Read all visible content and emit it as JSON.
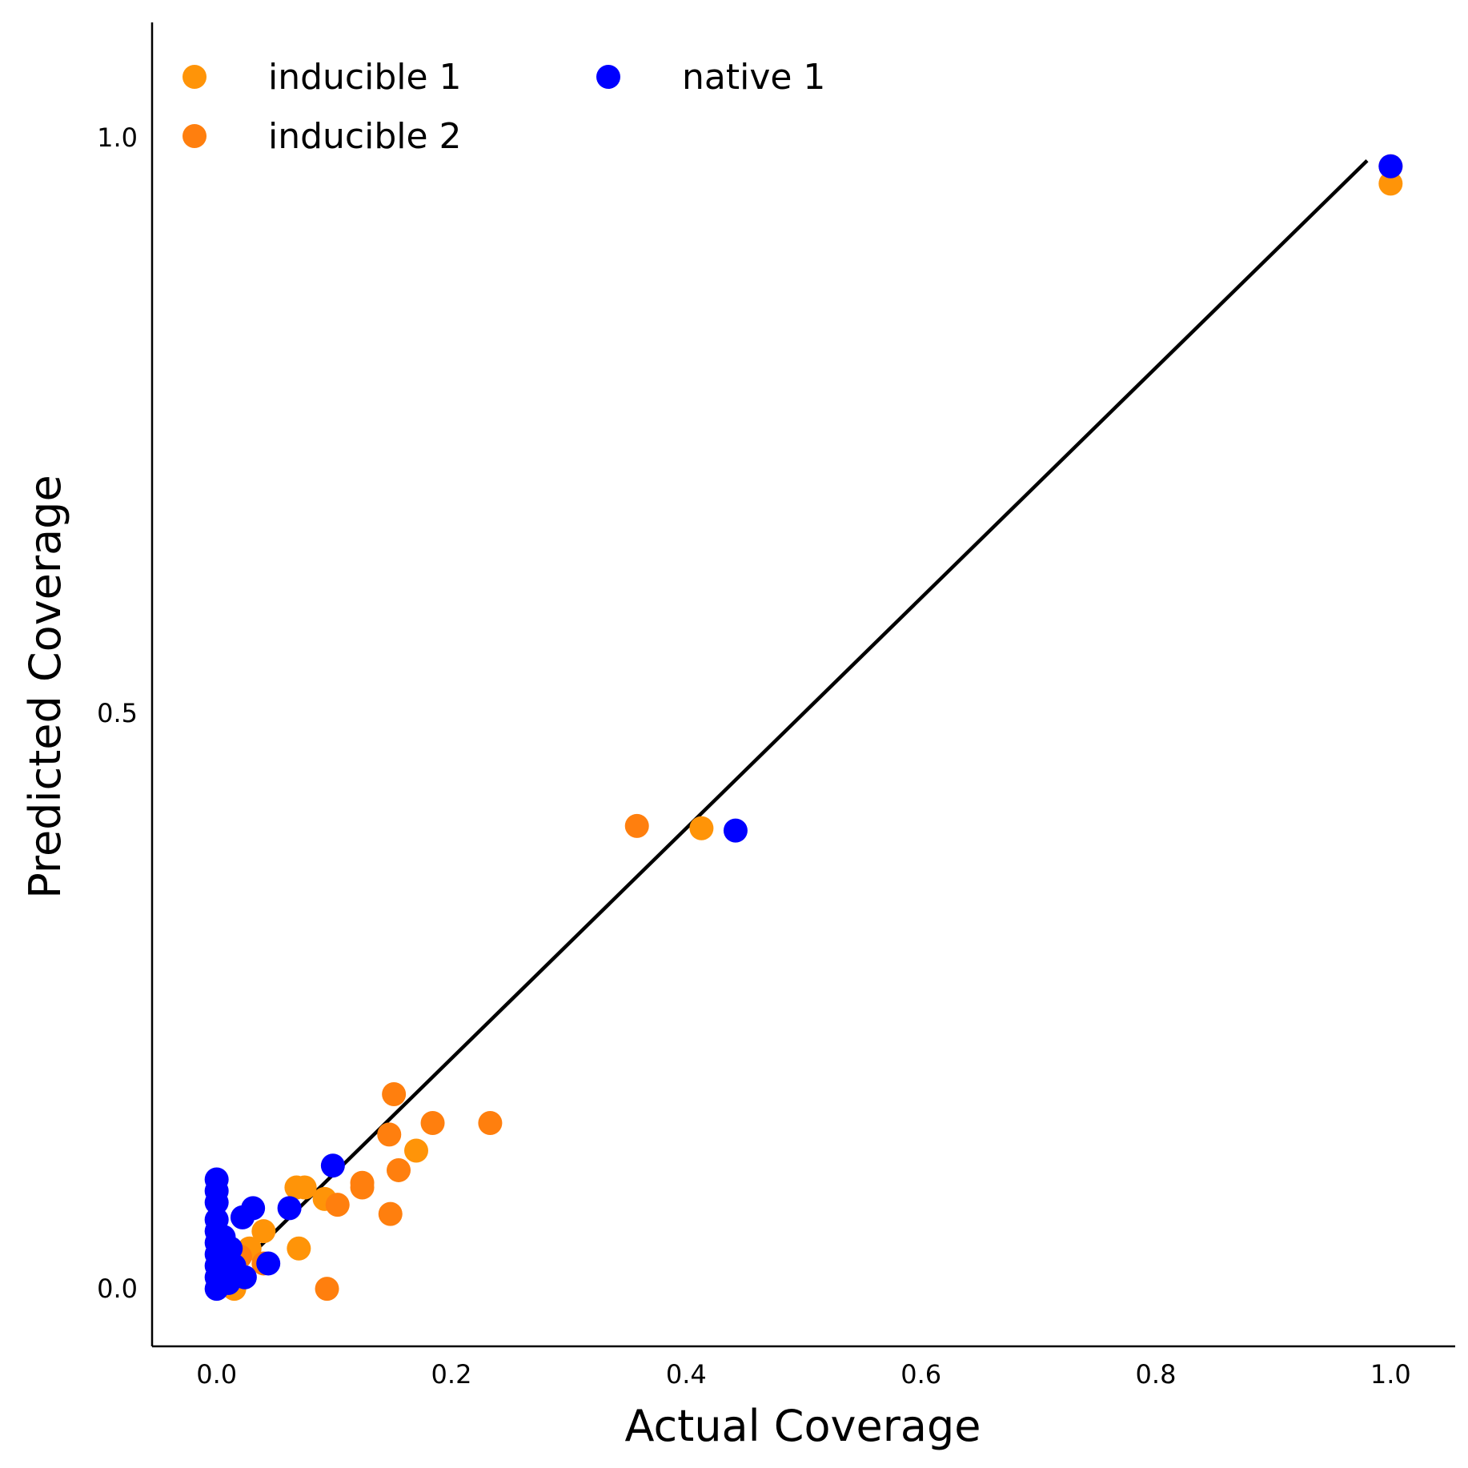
{
  "chart_data": {
    "type": "scatter",
    "title": "",
    "xlabel": "Actual Coverage",
    "ylabel": "Predicted Coverage",
    "xlim": [
      -0.055,
      1.055
    ],
    "ylim": [
      -0.05,
      1.1
    ],
    "xticks": [
      0.0,
      0.2,
      0.4,
      0.6,
      0.8,
      1.0
    ],
    "xtick_labels": [
      "0.0",
      "0.2",
      "0.4",
      "0.6",
      "0.8",
      "1.0"
    ],
    "yticks": [
      0.0,
      0.5,
      1.0
    ],
    "ytick_labels": [
      "0.0",
      "0.5",
      "1.0"
    ],
    "grid": false,
    "legend": {
      "placement": "top-left",
      "columns": 2
    },
    "fit_line": {
      "x": [
        0.02,
        0.98
      ],
      "y": [
        0.02,
        0.98
      ],
      "color": "#000000"
    },
    "series": [
      {
        "name": "inducible 1",
        "color": "#ff9408",
        "points": [
          [
            1.0,
            0.96
          ],
          [
            0.413,
            0.4
          ],
          [
            0.17,
            0.12
          ],
          [
            0.075,
            0.088
          ],
          [
            0.068,
            0.088
          ],
          [
            0.092,
            0.078
          ],
          [
            0.04,
            0.05
          ],
          [
            0.07,
            0.035
          ],
          [
            0.018,
            0.03
          ],
          [
            0.028,
            0.035
          ],
          [
            0.015,
            0.0
          ]
        ]
      },
      {
        "name": "inducible 2",
        "color": "#ff7f0e",
        "points": [
          [
            1.0,
            0.975
          ],
          [
            0.358,
            0.402
          ],
          [
            0.151,
            0.169
          ],
          [
            0.184,
            0.144
          ],
          [
            0.233,
            0.144
          ],
          [
            0.147,
            0.134
          ],
          [
            0.155,
            0.103
          ],
          [
            0.124,
            0.092
          ],
          [
            0.124,
            0.088
          ],
          [
            0.103,
            0.073
          ],
          [
            0.148,
            0.065
          ],
          [
            0.094,
            0.0
          ],
          [
            0.04,
            0.022
          ],
          [
            0.02,
            0.028
          ]
        ]
      },
      {
        "name": "native 1",
        "color": "#0000ff",
        "points": [
          [
            1.0,
            0.975
          ],
          [
            0.442,
            0.398
          ],
          [
            0.099,
            0.107
          ],
          [
            0.062,
            0.07
          ],
          [
            0.031,
            0.07
          ],
          [
            0.022,
            0.062
          ],
          [
            0.044,
            0.022
          ],
          [
            0.024,
            0.01
          ],
          [
            0.0,
            0.0
          ],
          [
            0.0,
            0.01
          ],
          [
            0.0,
            0.02
          ],
          [
            0.0,
            0.03
          ],
          [
            0.0,
            0.04
          ],
          [
            0.0,
            0.05
          ],
          [
            0.0,
            0.06
          ],
          [
            0.0,
            0.075
          ],
          [
            0.0,
            0.085
          ],
          [
            0.0,
            0.095
          ],
          [
            0.005,
            0.015
          ],
          [
            0.008,
            0.025
          ],
          [
            0.01,
            0.005
          ],
          [
            0.012,
            0.035
          ],
          [
            0.006,
            0.045
          ],
          [
            0.015,
            0.02
          ]
        ]
      }
    ]
  }
}
